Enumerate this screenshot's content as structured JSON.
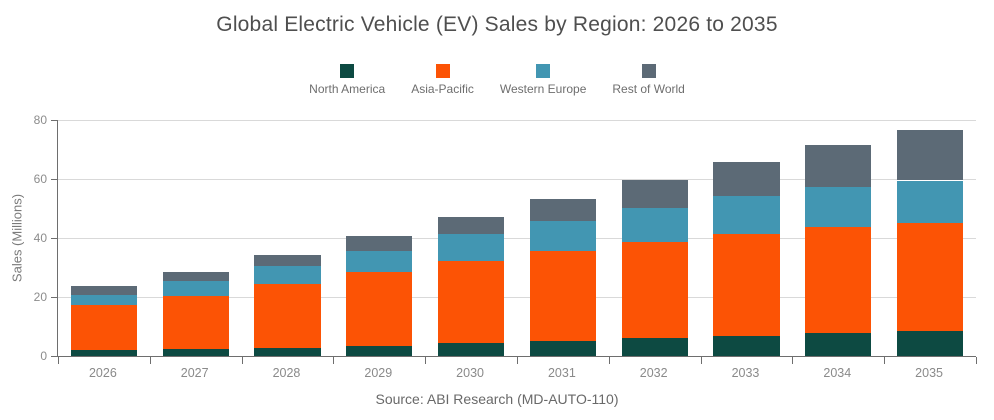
{
  "title": "Global Electric Vehicle (EV) Sales by Region: 2026 to 2035",
  "source": "Source: ABI Research (MD-AUTO-110)",
  "y_axis": {
    "label": "Sales (Millions)",
    "ticks": [
      0,
      20,
      40,
      60,
      80
    ]
  },
  "colors": {
    "north_america": "#0d4a42",
    "asia_pacific": "#fc5305",
    "western_europe": "#4296b2",
    "rest_of_world": "#5c6a76",
    "gridline": "#d9d9d9",
    "axis": "#6e6e6e"
  },
  "chart_data": {
    "type": "bar",
    "stacked": true,
    "title": "Global Electric Vehicle (EV) Sales by Region: 2026 to 2035",
    "xlabel": "",
    "ylabel": "Sales (Millions)",
    "ylim": [
      0,
      80
    ],
    "grid": true,
    "legend_position": "top",
    "categories": [
      "2026",
      "2027",
      "2028",
      "2029",
      "2030",
      "2031",
      "2032",
      "2033",
      "2034",
      "2035"
    ],
    "series": [
      {
        "name": "North America",
        "color": "#0d4a42",
        "values": [
          2.0,
          2.4,
          2.6,
          3.5,
          4.5,
          5.2,
          6.1,
          6.9,
          7.7,
          8.5
        ]
      },
      {
        "name": "Asia-Pacific",
        "color": "#fc5305",
        "values": [
          15.2,
          18.1,
          21.8,
          25.1,
          27.7,
          30.3,
          32.6,
          34.6,
          36.1,
          36.6
        ]
      },
      {
        "name": "Western Europe",
        "color": "#4296b2",
        "values": [
          3.4,
          5.0,
          6.0,
          7.0,
          9.0,
          10.4,
          11.6,
          12.6,
          13.4,
          14.4
        ]
      },
      {
        "name": "Rest of World",
        "color": "#5c6a76",
        "values": [
          3.0,
          3.1,
          3.7,
          5.2,
          5.8,
          7.4,
          9.3,
          11.8,
          14.2,
          17.0
        ]
      }
    ],
    "totals": [
      23.6,
      28.6,
      34.1,
      40.8,
      47.0,
      53.3,
      59.6,
      65.9,
      71.4,
      76.5
    ]
  }
}
